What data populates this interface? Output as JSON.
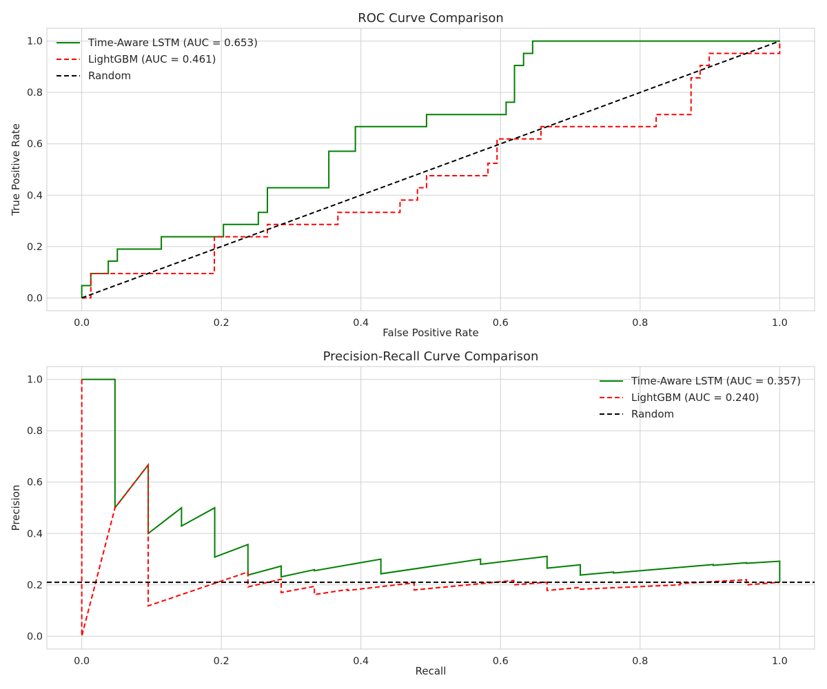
{
  "chart_data": [
    {
      "type": "line",
      "title": "ROC Curve Comparison",
      "xlabel": "False Positive Rate",
      "ylabel": "True Positive Rate",
      "xlim": [
        -0.05,
        1.05
      ],
      "ylim": [
        -0.05,
        1.05
      ],
      "xticks": [
        0.0,
        0.2,
        0.4,
        0.6,
        0.8,
        1.0
      ],
      "yticks": [
        0.0,
        0.2,
        0.4,
        0.6,
        0.8,
        1.0
      ],
      "xtick_labels": [
        "0.0",
        "0.2",
        "0.4",
        "0.6",
        "0.8",
        "1.0"
      ],
      "ytick_labels": [
        "0.0",
        "0.2",
        "0.4",
        "0.6",
        "0.8",
        "1.0"
      ],
      "grid": true,
      "legend_position": "top-left",
      "series": [
        {
          "name": "Time-Aware LSTM (AUC = 0.653)",
          "color": "#008000",
          "style": "solid",
          "step": true,
          "x": [
            0.0,
            0.0,
            0.013,
            0.013,
            0.038,
            0.038,
            0.051,
            0.051,
            0.114,
            0.114,
            0.203,
            0.203,
            0.253,
            0.253,
            0.266,
            0.266,
            0.354,
            0.354,
            0.392,
            0.392,
            0.494,
            0.494,
            0.608,
            0.608,
            0.62,
            0.62,
            0.633,
            0.633,
            0.646,
            0.646,
            1.0
          ],
          "y": [
            0.0,
            0.048,
            0.048,
            0.095,
            0.095,
            0.143,
            0.143,
            0.19,
            0.19,
            0.238,
            0.238,
            0.286,
            0.286,
            0.333,
            0.333,
            0.429,
            0.429,
            0.571,
            0.571,
            0.667,
            0.667,
            0.714,
            0.714,
            0.762,
            0.762,
            0.905,
            0.905,
            0.952,
            0.952,
            1.0,
            1.0
          ]
        },
        {
          "name": "LightGBM (AUC = 0.461)",
          "color": "#ff0000",
          "style": "dashed",
          "step": true,
          "x": [
            0.0,
            0.0,
            0.013,
            0.013,
            0.19,
            0.19,
            0.266,
            0.266,
            0.367,
            0.367,
            0.456,
            0.456,
            0.481,
            0.481,
            0.494,
            0.494,
            0.582,
            0.582,
            0.595,
            0.595,
            0.658,
            0.658,
            0.823,
            0.823,
            0.873,
            0.873,
            0.886,
            0.886,
            0.899,
            0.899,
            1.0,
            1.0
          ],
          "y": [
            0.0,
            0.0,
            0.0,
            0.095,
            0.095,
            0.238,
            0.238,
            0.286,
            0.286,
            0.333,
            0.333,
            0.381,
            0.381,
            0.429,
            0.429,
            0.476,
            0.476,
            0.524,
            0.524,
            0.619,
            0.619,
            0.667,
            0.667,
            0.714,
            0.714,
            0.857,
            0.857,
            0.905,
            0.905,
            0.952,
            0.952,
            1.0
          ]
        },
        {
          "name": "Random",
          "color": "#000000",
          "style": "dashed",
          "x": [
            0.0,
            1.0
          ],
          "y": [
            0.0,
            1.0
          ]
        }
      ]
    },
    {
      "type": "line",
      "title": "Precision-Recall Curve Comparison",
      "xlabel": "Recall",
      "ylabel": "Precision",
      "xlim": [
        -0.05,
        1.05
      ],
      "ylim": [
        -0.05,
        1.05
      ],
      "xticks": [
        0.0,
        0.2,
        0.4,
        0.6,
        0.8,
        1.0
      ],
      "yticks": [
        0.0,
        0.2,
        0.4,
        0.6,
        0.8,
        1.0
      ],
      "xtick_labels": [
        "0.0",
        "0.2",
        "0.4",
        "0.6",
        "0.8",
        "1.0"
      ],
      "ytick_labels": [
        "0.0",
        "0.2",
        "0.4",
        "0.6",
        "0.8",
        "1.0"
      ],
      "grid": true,
      "legend_position": "top-right",
      "series": [
        {
          "name": "Time-Aware LSTM (AUC = 0.357)",
          "color": "#008000",
          "style": "solid",
          "x": [
            0.0,
            0.0476,
            0.0476,
            0.0952,
            0.0952,
            0.1429,
            0.1429,
            0.1905,
            0.1905,
            0.2381,
            0.2381,
            0.2857,
            0.2857,
            0.3333,
            0.3333,
            0.4286,
            0.4286,
            0.5714,
            0.5714,
            0.6667,
            0.6667,
            0.7143,
            0.7143,
            0.7619,
            0.7619,
            0.9048,
            0.9048,
            0.9524,
            0.9524,
            1.0,
            1.0
          ],
          "y": [
            1.0,
            1.0,
            0.5,
            0.667,
            0.4,
            0.5,
            0.429,
            0.5,
            0.308,
            0.357,
            0.238,
            0.273,
            0.231,
            0.259,
            0.255,
            0.3,
            0.243,
            0.3,
            0.28,
            0.311,
            0.265,
            0.278,
            0.238,
            0.25,
            0.246,
            0.279,
            0.276,
            0.286,
            0.284,
            0.292,
            0.21
          ]
        },
        {
          "name": "LightGBM (AUC = 0.240)",
          "color": "#ff0000",
          "style": "dashed",
          "x": [
            0.0,
            0.0,
            0.0476,
            0.0952,
            0.0952,
            0.2381,
            0.2381,
            0.2857,
            0.2857,
            0.3333,
            0.3333,
            0.381,
            0.381,
            0.4762,
            0.4762,
            0.619,
            0.619,
            0.6667,
            0.6667,
            0.7143,
            0.7143,
            0.8571,
            0.8571,
            0.9524,
            0.9524,
            1.0
          ],
          "y": [
            1.0,
            0.0,
            0.5,
            0.667,
            0.118,
            0.25,
            0.192,
            0.222,
            0.17,
            0.194,
            0.162,
            0.182,
            0.178,
            0.208,
            0.18,
            0.217,
            0.2,
            0.21,
            0.178,
            0.19,
            0.183,
            0.2,
            0.205,
            0.22,
            0.2,
            0.21
          ]
        },
        {
          "name": "Random",
          "color": "#000000",
          "style": "dashed",
          "x": [
            -0.05,
            1.05
          ],
          "y": [
            0.21,
            0.21
          ]
        }
      ]
    }
  ]
}
